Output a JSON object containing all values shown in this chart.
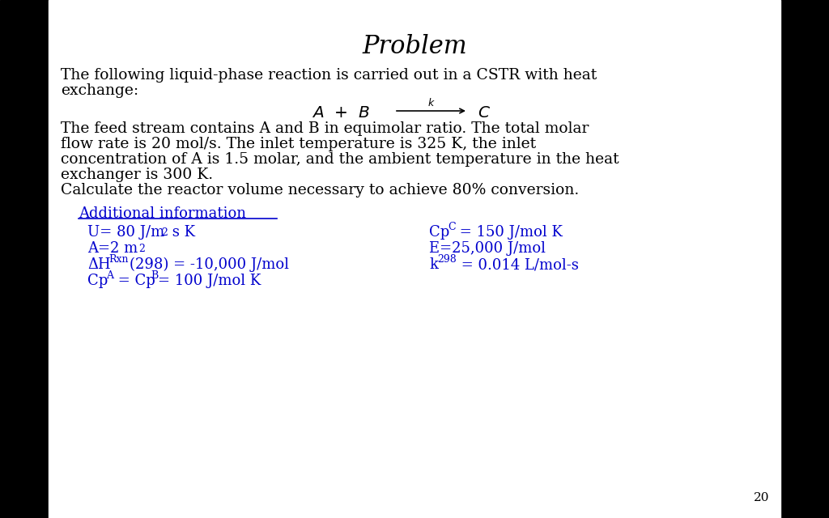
{
  "title": "Problem",
  "title_fontsize": 22,
  "body_color": "#000000",
  "blue_color": "#0000CD",
  "bg_color": "#ffffff",
  "page_number": "20",
  "body_fontsize": 13.5,
  "additional_fontsize": 13.0,
  "paragraph1_line1": "The following liquid-phase reaction is carried out in a CSTR with heat",
  "paragraph1_line2": "exchange:",
  "paragraph2_line1": "The feed stream contains A and B in equimolar ratio. The total molar",
  "paragraph2_line2": "flow rate is 20 mol/s. The inlet temperature is 325 K, the inlet",
  "paragraph2_line3": "concentration of A is 1.5 molar, and the ambient temperature in the heat",
  "paragraph2_line4": "exchanger is 300 K.",
  "paragraph3": "Calculate the reactor volume necessary to achieve 80% conversion.",
  "additional_header": "Additional information",
  "page_num": "20"
}
